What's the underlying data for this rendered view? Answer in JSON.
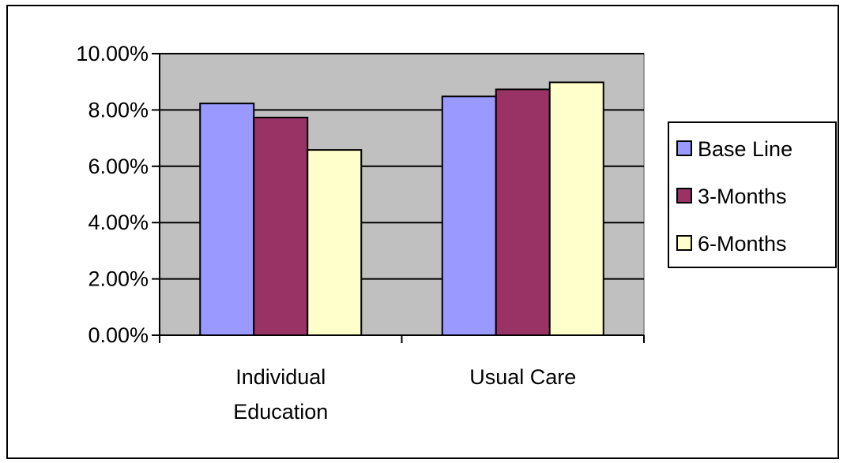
{
  "chart_data": {
    "type": "bar",
    "categories": [
      [
        "Individual",
        "Education"
      ],
      [
        "Usual Care"
      ]
    ],
    "series": [
      {
        "name": "Base Line",
        "values": [
          0.0823,
          0.0848
        ],
        "color": "#9999ff"
      },
      {
        "name": "3-Months",
        "values": [
          0.0773,
          0.0873
        ],
        "color": "#993366"
      },
      {
        "name": "6-Months",
        "values": [
          0.0658,
          0.0898
        ],
        "color": "#ffffcc"
      }
    ],
    "ylim": [
      0,
      0.1
    ],
    "yticks": [
      0,
      0.02,
      0.04,
      0.06,
      0.08,
      0.1
    ],
    "ytick_labels": [
      "0.00%",
      "2.00%",
      "4.00%",
      "6.00%",
      "8.00%",
      "10.00%"
    ],
    "grid": true,
    "plot_background": "#c0c0c0",
    "legend_position": "right",
    "title": "",
    "xlabel": "",
    "ylabel": ""
  }
}
